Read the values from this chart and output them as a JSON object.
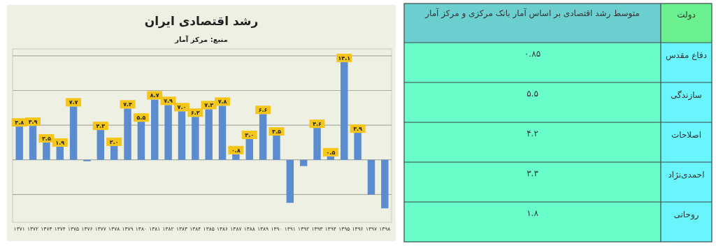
{
  "chart_data": [
    {
      "type": "bar",
      "title": "رشد اقتصادی ایران",
      "subtitle": "منبع: مرکز آمار",
      "categories": [
        "۱۳۷۱",
        "۱۳۷۲",
        "۱۳۷۳",
        "۱۳۷۴",
        "۱۳۷۵",
        "۱۳۷۶",
        "۱۳۷۷",
        "۱۳۷۸",
        "۱۳۷۹",
        "۱۳۸۰",
        "۱۳۸۱",
        "۱۳۸۲",
        "۱۳۸۳",
        "۱۳۸۴",
        "۱۳۸۵",
        "۱۳۸۶",
        "۱۳۸۷",
        "۱۳۸۸",
        "۱۳۸۹",
        "۱۳۹۰",
        "۱۳۹۱",
        "۱۳۹۲",
        "۱۳۹۳",
        "۱۳۹۴",
        "۱۳۹۵",
        "۱۳۹۶",
        "۱۳۹۷",
        "۱۳۹۸"
      ],
      "values": [
        4.8,
        4.9,
        2.5,
        1.9,
        7.7,
        -0.2,
        4.3,
        2.0,
        7.4,
        5.5,
        8.7,
        7.9,
        7.0,
        6.2,
        7.3,
        7.8,
        0.8,
        3.0,
        6.6,
        3.5,
        -6.2,
        -0.9,
        4.6,
        0.5,
        14.1,
        3.9,
        -5.0,
        -7.0
      ],
      "value_labels": [
        "۴.۸",
        "۴.۹",
        "۲.۵",
        "۱.۹",
        "۷.۷",
        null,
        "۴.۳",
        "۲.۰",
        "۷.۴",
        "۵.۵",
        "۸.۷",
        "۷.۹",
        "۷.۰",
        "۶.۲",
        "۷.۳",
        "۷.۸",
        "۰.۸",
        "۳.۰",
        "۶.۶",
        "۳.۵",
        null,
        null,
        "۴.۶",
        "۰.۵",
        "۱۴.۱",
        "۳.۹",
        null,
        null
      ],
      "color": "#5b8ccf",
      "ylim": [
        -9,
        16
      ],
      "yticks": [
        {
          "value": -5,
          "label": null
        },
        {
          "value": 0,
          "label": null
        },
        {
          "value": 5,
          "label": null
        },
        {
          "value": 10,
          "label": null
        },
        {
          "value": 15,
          "label": null
        }
      ],
      "tick_labels": "x",
      "grid": "y"
    },
    {
      "type": "other",
      "xlabel": "متوسط رشد اقتصادی بر اساس آمار بانک مرکزی و مرکز آمار",
      "ylabel": "دولت",
      "categories": [
        "دفاع مقدس",
        "سازندگی",
        "اصلاحات",
        "احمدی‌نژاد",
        "روحانی"
      ],
      "values": [
        0.85,
        5.5,
        4.2,
        3.3,
        1.8
      ],
      "value_labels": [
        "۰.۸۵",
        "۵.۵",
        "۴.۲",
        "۳.۳",
        "۱.۸"
      ],
      "color": "#69fdc9"
    }
  ]
}
